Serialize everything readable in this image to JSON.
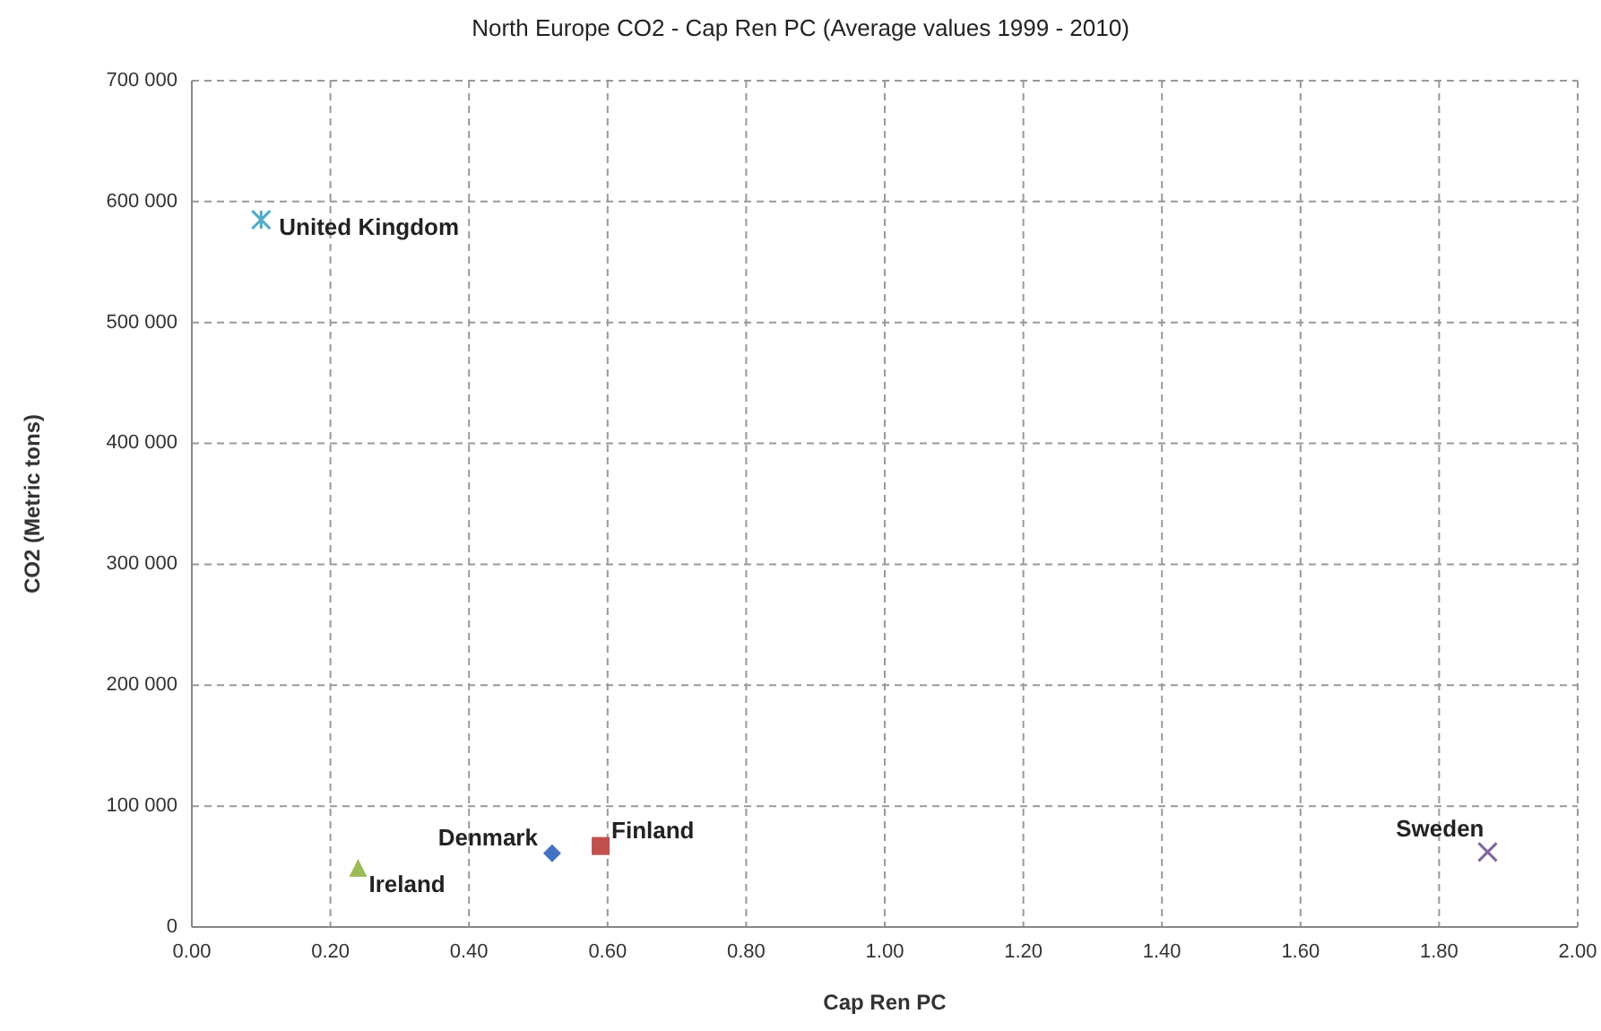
{
  "chart_data": {
    "type": "scatter",
    "title": "North Europe CO2 - Cap Ren PC (Average values 1999 - 2010)",
    "xlabel": "Cap Ren PC",
    "ylabel": "CO2 (Metric tons)",
    "xlim": [
      0,
      2
    ],
    "xticks": [
      {
        "value": 0,
        "label": "0.00"
      },
      {
        "value": 0.2,
        "label": "0.20"
      },
      {
        "value": 0.4,
        "label": "0.40"
      },
      {
        "value": 0.6,
        "label": "0.60"
      },
      {
        "value": 0.8,
        "label": "0.80"
      },
      {
        "value": 1,
        "label": "1.00"
      },
      {
        "value": 1.2,
        "label": "1.20"
      },
      {
        "value": 1.4,
        "label": "1.40"
      },
      {
        "value": 1.6,
        "label": "1.60"
      },
      {
        "value": 1.8,
        "label": "1.80"
      },
      {
        "value": 2,
        "label": "2.00"
      }
    ],
    "ylim": [
      0,
      700000
    ],
    "yticks": [
      0,
      {
        "value": 100000,
        "label": "100 000"
      },
      {
        "value": 200000,
        "label": "200 000"
      },
      {
        "value": 300000,
        "label": "300 000"
      },
      {
        "value": 400000,
        "label": "400 000"
      },
      {
        "value": 500000,
        "label": "500 000"
      },
      {
        "value": 600000,
        "label": "600 000"
      },
      {
        "value": 700000,
        "label": "700 000"
      }
    ],
    "grid": true,
    "series": [
      {
        "name": "Denmark",
        "color": "#4472c4",
        "marker": "diamond",
        "x": [
          0.52
        ],
        "values": [
          61000
        ]
      },
      {
        "name": "Finland",
        "color": "#c0504d",
        "marker": "square",
        "x": [
          0.59
        ],
        "values": [
          67000
        ]
      },
      {
        "name": "Ireland",
        "color": "#9bbb59",
        "marker": "triangle",
        "x": [
          0.24
        ],
        "values": [
          49000
        ]
      },
      {
        "name": "Sweden",
        "color": "#8064a2",
        "marker": "cross",
        "x": [
          1.87
        ],
        "values": [
          62000
        ]
      },
      {
        "name": "United Kingdom",
        "color": "#4bacc6",
        "marker": "cross",
        "x": [
          0.1
        ],
        "values": [
          585000
        ]
      }
    ]
  }
}
